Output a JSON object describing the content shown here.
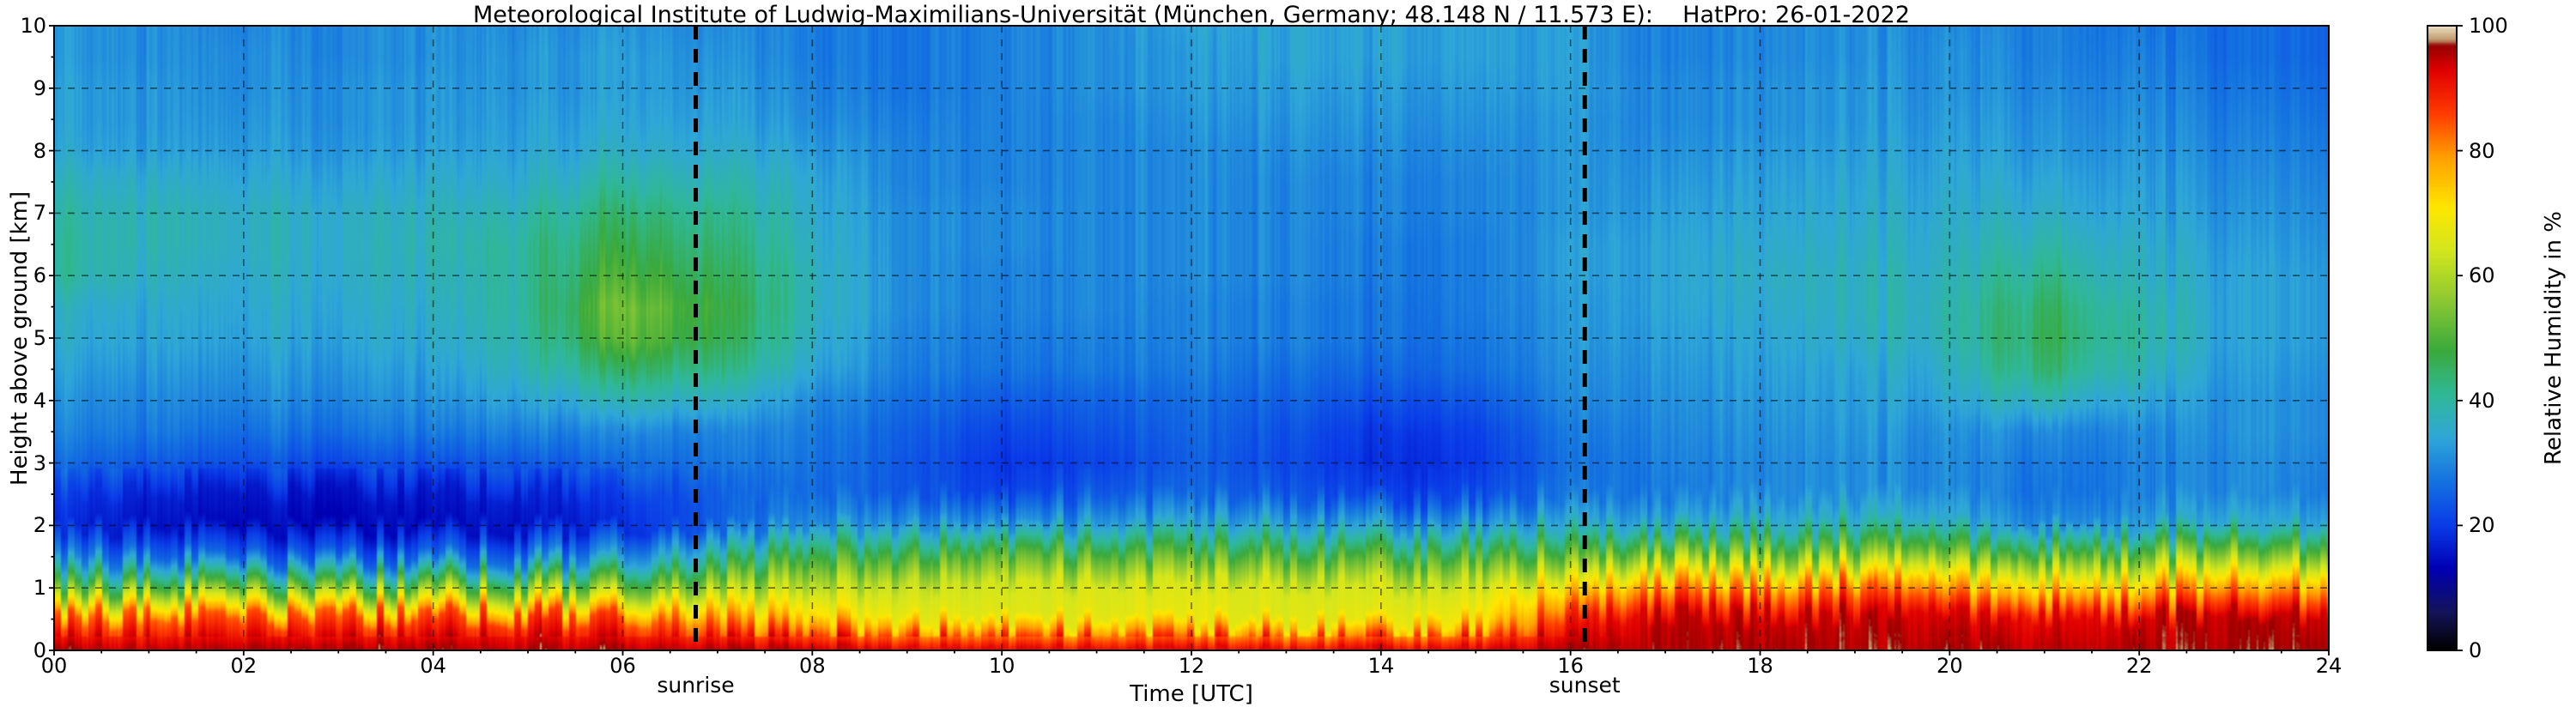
{
  "title": "Meteorological Institute of Ludwig-Maximilians-Universität (München, Germany; 48.148 N / 11.573 E):    HatPro: 26-01-2022",
  "annotations": {
    "sunrise": "sunrise",
    "sunset": "sunset"
  },
  "chart_data": {
    "type": "heatmap",
    "title": "Meteorological Institute of Ludwig-Maximilians-Universität (München, Germany; 48.148 N / 11.573 E):    HatPro: 26-01-2022",
    "xlabel": "Time [UTC]",
    "ylabel": "Height above ground [km]",
    "colorbar_label": "Relative Humidity in %",
    "x_range": [
      0,
      24
    ],
    "y_range": [
      0,
      10
    ],
    "value_range": [
      0,
      100
    ],
    "x_ticks": {
      "values": [
        0,
        2,
        4,
        6,
        8,
        10,
        12,
        14,
        16,
        18,
        20,
        22,
        24
      ],
      "labels": [
        "00",
        "02",
        "04",
        "06",
        "08",
        "10",
        "12",
        "14",
        "16",
        "18",
        "20",
        "22",
        "24"
      ]
    },
    "y_ticks": {
      "values": [
        0,
        1,
        2,
        3,
        4,
        5,
        6,
        7,
        8,
        9,
        10
      ],
      "labels": [
        "0",
        "1",
        "2",
        "3",
        "4",
        "5",
        "6",
        "7",
        "8",
        "9",
        "10"
      ]
    },
    "colorbar_ticks": {
      "values": [
        0,
        20,
        40,
        60,
        80,
        100
      ],
      "labels": [
        "0",
        "20",
        "40",
        "60",
        "80",
        "100"
      ]
    },
    "minor_tick_step": {
      "x_hours": 0.5,
      "y_km": 0.5
    },
    "grid": {
      "x_lines": [
        2,
        4,
        6,
        8,
        10,
        12,
        14,
        16,
        18,
        20,
        22
      ],
      "y_lines": [
        1,
        2,
        3,
        4,
        5,
        6,
        7,
        8,
        9
      ],
      "style": "dashed"
    },
    "sunrise_time_utc": 6.77,
    "sunset_time_utc": 16.15,
    "x_hours": [
      0,
      1,
      2,
      3,
      4,
      5,
      6,
      7,
      8,
      9,
      10,
      11,
      12,
      13,
      14,
      15,
      16,
      17,
      18,
      19,
      20,
      21,
      22,
      23,
      24
    ],
    "y_km": [
      0,
      0.5,
      1,
      1.5,
      2,
      2.5,
      3,
      3.5,
      4,
      4.5,
      5,
      5.5,
      6,
      6.5,
      7,
      7.5,
      8,
      8.5,
      9,
      9.5,
      10
    ],
    "values_percent_rh": [
      [
        96,
        95,
        96,
        96,
        96,
        96,
        96,
        95,
        94,
        93,
        92,
        92,
        93,
        92,
        93,
        94,
        96,
        96,
        96,
        96,
        96,
        95,
        96,
        96,
        96
      ],
      [
        84,
        83,
        85,
        84,
        85,
        87,
        85,
        79,
        72,
        68,
        66,
        67,
        68,
        66,
        67,
        70,
        89,
        95,
        94,
        95,
        93,
        92,
        94,
        95,
        94
      ],
      [
        52,
        50,
        52,
        50,
        52,
        55,
        55,
        58,
        60,
        63,
        64,
        65,
        66,
        65,
        64,
        65,
        72,
        80,
        78,
        82,
        76,
        72,
        75,
        78,
        76
      ],
      [
        30,
        26,
        25,
        24,
        25,
        28,
        32,
        40,
        46,
        48,
        50,
        50,
        51,
        50,
        49,
        50,
        52,
        55,
        54,
        56,
        52,
        50,
        53,
        55,
        52
      ],
      [
        18,
        15,
        14,
        13,
        14,
        15,
        18,
        24,
        30,
        32,
        30,
        33,
        35,
        34,
        32,
        33,
        36,
        34,
        36,
        38,
        35,
        30,
        33,
        35,
        33
      ],
      [
        20,
        17,
        16,
        15,
        16,
        17,
        20,
        24,
        26,
        24,
        20,
        24,
        26,
        24,
        20,
        22,
        28,
        28,
        30,
        31,
        30,
        27,
        29,
        30,
        28
      ],
      [
        26,
        24,
        23,
        22,
        23,
        24,
        26,
        27,
        27,
        24,
        19,
        21,
        25,
        22,
        18,
        20,
        27,
        29,
        30,
        31,
        30,
        28,
        29,
        30,
        29
      ],
      [
        29,
        28,
        27,
        27,
        28,
        29,
        30,
        29,
        28,
        25,
        21,
        23,
        26,
        23,
        19,
        21,
        28,
        30,
        31,
        32,
        31,
        30,
        30,
        31,
        30
      ],
      [
        31,
        30,
        30,
        30,
        31,
        34,
        38,
        36,
        30,
        27,
        24,
        25,
        27,
        25,
        22,
        24,
        30,
        31,
        32,
        33,
        34,
        38,
        34,
        31,
        30
      ],
      [
        33,
        32,
        32,
        32,
        33,
        38,
        45,
        42,
        34,
        29,
        27,
        28,
        29,
        27,
        25,
        27,
        31,
        32,
        33,
        34,
        36,
        44,
        38,
        32,
        31
      ],
      [
        35,
        34,
        34,
        34,
        35,
        40,
        52,
        46,
        36,
        30,
        28,
        29,
        30,
        29,
        27,
        28,
        32,
        33,
        34,
        36,
        38,
        46,
        40,
        33,
        32
      ],
      [
        36,
        35,
        35,
        35,
        36,
        41,
        54,
        47,
        37,
        31,
        29,
        30,
        30,
        29,
        27,
        29,
        32,
        34,
        35,
        37,
        38,
        45,
        39,
        33,
        32
      ],
      [
        40,
        37,
        36,
        36,
        37,
        41,
        50,
        45,
        37,
        31,
        29,
        30,
        31,
        30,
        28,
        29,
        33,
        34,
        36,
        37,
        37,
        42,
        37,
        33,
        32
      ],
      [
        40,
        38,
        37,
        36,
        38,
        41,
        47,
        43,
        36,
        31,
        30,
        30,
        31,
        30,
        28,
        29,
        33,
        34,
        35,
        36,
        36,
        39,
        36,
        32,
        31
      ],
      [
        39,
        38,
        37,
        36,
        37,
        39,
        44,
        41,
        35,
        31,
        30,
        30,
        31,
        30,
        29,
        30,
        32,
        33,
        34,
        35,
        35,
        36,
        34,
        31,
        30
      ],
      [
        37,
        36,
        35,
        34,
        35,
        36,
        40,
        38,
        34,
        30,
        29,
        30,
        31,
        30,
        29,
        30,
        32,
        32,
        33,
        34,
        34,
        34,
        33,
        30,
        29
      ],
      [
        34,
        33,
        33,
        32,
        33,
        34,
        36,
        35,
        32,
        30,
        29,
        30,
        31,
        31,
        30,
        31,
        32,
        31,
        32,
        33,
        33,
        32,
        32,
        29,
        28
      ],
      [
        33,
        32,
        32,
        31,
        32,
        33,
        34,
        33,
        30,
        29,
        29,
        30,
        32,
        32,
        31,
        32,
        32,
        30,
        31,
        32,
        32,
        31,
        31,
        28,
        27
      ],
      [
        33,
        32,
        31,
        31,
        32,
        32,
        33,
        32,
        29,
        28,
        29,
        31,
        33,
        33,
        32,
        33,
        33,
        30,
        31,
        32,
        31,
        30,
        30,
        27,
        26
      ],
      [
        32,
        31,
        31,
        30,
        31,
        32,
        33,
        31,
        28,
        28,
        29,
        31,
        33,
        34,
        33,
        34,
        33,
        29,
        30,
        31,
        31,
        29,
        29,
        26,
        25
      ],
      [
        32,
        31,
        30,
        30,
        31,
        31,
        32,
        30,
        28,
        28,
        29,
        31,
        34,
        34,
        33,
        34,
        33,
        29,
        30,
        31,
        30,
        29,
        28,
        26,
        25
      ]
    ],
    "colormap_stops": [
      [
        0,
        "#000000"
      ],
      [
        6,
        "#14145a"
      ],
      [
        13,
        "#0000b4"
      ],
      [
        20,
        "#0a3ce8"
      ],
      [
        27,
        "#1472e0"
      ],
      [
        34,
        "#2fa7d8"
      ],
      [
        41,
        "#2fb896"
      ],
      [
        48,
        "#3aaa3c"
      ],
      [
        56,
        "#8cc832"
      ],
      [
        64,
        "#d2e61e"
      ],
      [
        71,
        "#ffe600"
      ],
      [
        79,
        "#ffa000"
      ],
      [
        86,
        "#ff3c00"
      ],
      [
        93,
        "#e10000"
      ],
      [
        97,
        "#960000"
      ],
      [
        98,
        "#c09a6e"
      ],
      [
        100,
        "#ecdcc0"
      ]
    ]
  }
}
